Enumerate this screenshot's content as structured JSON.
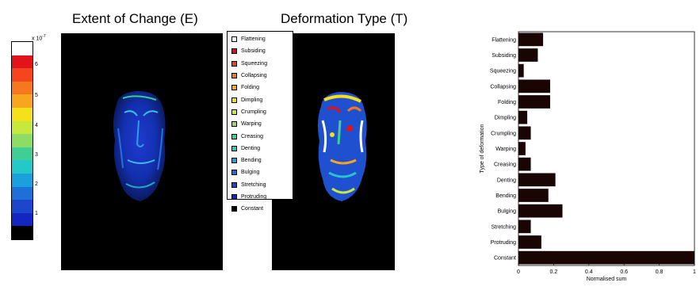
{
  "titles": {
    "extent": "Extent of Change (E)",
    "deformation": "Deformation Type (T)"
  },
  "colorbar": {
    "exponent_label": "x 10",
    "exponent_power": "-7",
    "ticks": [
      "6",
      "5",
      "4",
      "3",
      "2",
      "1"
    ],
    "colors": [
      "#ffffff",
      "#e0141a",
      "#f4451c",
      "#f5781f",
      "#f7a61e",
      "#f4e11a",
      "#c7e83c",
      "#8fdc64",
      "#3fcf94",
      "#25c8c8",
      "#1aa0dc",
      "#1e6fd8",
      "#1e46cc",
      "#1226c0",
      "#000000"
    ]
  },
  "legend": {
    "items": [
      {
        "label": "Flattening",
        "color": "#ffffff"
      },
      {
        "label": "Subsiding",
        "color": "#d0141a"
      },
      {
        "label": "Squeezing",
        "color": "#f0401c"
      },
      {
        "label": "Collapsing",
        "color": "#f0781e"
      },
      {
        "label": "Folding",
        "color": "#f5a81e"
      },
      {
        "label": "Dimpling",
        "color": "#f0e01a"
      },
      {
        "label": "Crumpling",
        "color": "#c8e83c"
      },
      {
        "label": "Warping",
        "color": "#90dc64"
      },
      {
        "label": "Creasing",
        "color": "#40cf94"
      },
      {
        "label": "Denting",
        "color": "#25c8c8"
      },
      {
        "label": "Bending",
        "color": "#20a0dc"
      },
      {
        "label": "Bulging",
        "color": "#1e70d8"
      },
      {
        "label": "Stretching",
        "color": "#1e46cc"
      },
      {
        "label": "Protruding",
        "color": "#1226c0"
      },
      {
        "label": "Constant",
        "color": "#000000"
      }
    ]
  },
  "chart_data": {
    "type": "bar",
    "orientation": "horizontal",
    "categories": [
      "Flattening",
      "Subsiding",
      "Squeezing",
      "Collapsing",
      "Folding",
      "Dimpling",
      "Crumpling",
      "Warping",
      "Creasing",
      "Denting",
      "Bending",
      "Bulging",
      "Stretching",
      "Protruding",
      "Constant"
    ],
    "values": [
      0.14,
      0.11,
      0.03,
      0.18,
      0.18,
      0.05,
      0.07,
      0.04,
      0.07,
      0.21,
      0.17,
      0.25,
      0.07,
      0.13,
      1.0
    ],
    "xlabel": "Normalised sum",
    "ylabel": "Type of deformation",
    "xlim": [
      0,
      1
    ],
    "xticks": [
      "0",
      "0.2",
      "0.4",
      "0.6",
      "0.8",
      "1"
    ],
    "bar_color": "#1a0505"
  }
}
